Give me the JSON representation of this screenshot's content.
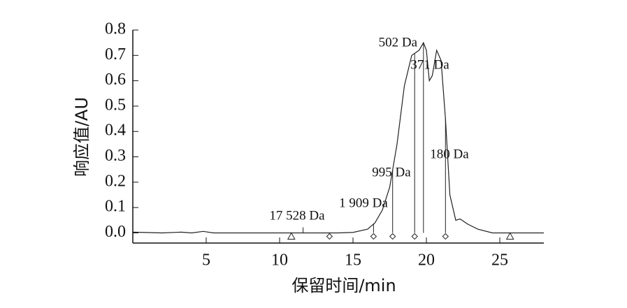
{
  "chart_data": {
    "type": "line",
    "x_label": "保留时间/min",
    "y_label": "响应值/AU",
    "xlim": [
      0,
      28
    ],
    "ylim": [
      -0.04,
      0.8
    ],
    "xticks": [
      5,
      10,
      15,
      20,
      25
    ],
    "yticks": [
      {
        "value": 0,
        "label": "0.0"
      },
      0.1,
      0.2,
      0.3,
      0.4,
      0.5,
      0.6,
      0.7,
      0.8
    ],
    "series": [
      {
        "name": "响应值",
        "color": "#222222",
        "x": [
          0,
          2,
          3.3,
          4,
          4.8,
          5.5,
          7,
          10,
          11.6,
          14,
          15,
          16,
          16.5,
          17,
          17.5,
          18,
          18.5,
          19,
          19.5,
          19.8,
          20,
          20.2,
          20.4,
          20.7,
          21,
          21.3,
          21.6,
          22,
          22.3,
          22.8,
          23.5,
          24.5,
          28
        ],
        "values": [
          0.003,
          0,
          0.003,
          0,
          0.006,
          0,
          0,
          0,
          0,
          0,
          0.002,
          0.015,
          0.04,
          0.09,
          0.18,
          0.35,
          0.58,
          0.7,
          0.72,
          0.75,
          0.72,
          0.6,
          0.62,
          0.72,
          0.68,
          0.45,
          0.15,
          0.05,
          0.055,
          0.035,
          0.015,
          0,
          0
        ]
      }
    ],
    "annotations": [
      {
        "label": "17 528 Da",
        "x": 11.6
      },
      {
        "label": "1 909 Da",
        "x": 16.4
      },
      {
        "label": "995 Da",
        "x": 17.7
      },
      {
        "label": "502 Da",
        "x": 19.2
      },
      {
        "label": "371 Da",
        "x": 19.8
      },
      {
        "label": "180 Da",
        "x": 21.3
      }
    ],
    "baseline_markers": [
      {
        "x": 10.8,
        "shape": "triangle"
      },
      {
        "x": 13.4,
        "shape": "diamond"
      },
      {
        "x": 16.4,
        "shape": "diamond"
      },
      {
        "x": 17.7,
        "shape": "diamond"
      },
      {
        "x": 19.2,
        "shape": "diamond"
      },
      {
        "x": 21.3,
        "shape": "diamond"
      },
      {
        "x": 25.7,
        "shape": "triangle"
      }
    ]
  }
}
